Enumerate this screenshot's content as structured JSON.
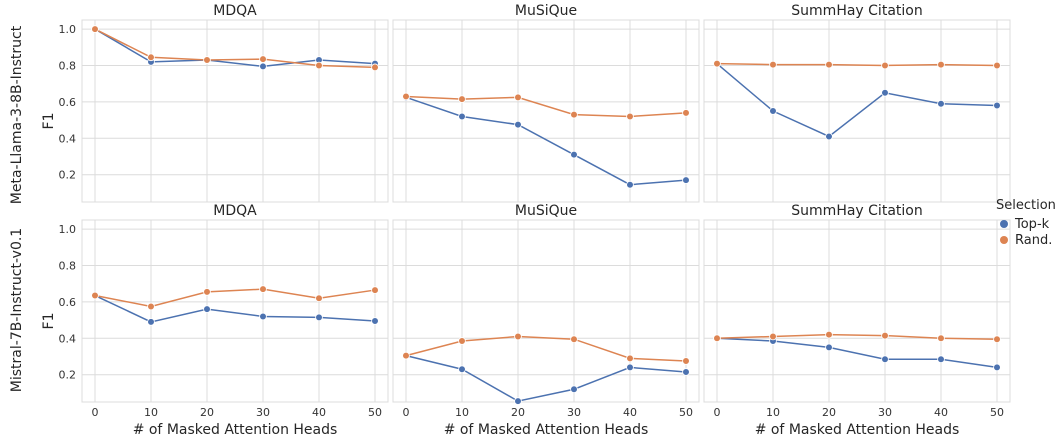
{
  "colors": {
    "topk": "#4c72b0",
    "rand": "#dd8452"
  },
  "legend": {
    "title": "Selection",
    "entries": [
      {
        "label": "Top-k",
        "color": "#4c72b0"
      },
      {
        "label": "Rand.",
        "color": "#dd8452"
      }
    ]
  },
  "row_labels": [
    "Meta-Llama-3-8B-Instruct",
    "Mistral-7B-Instruct-v0.1"
  ],
  "chart_data": [
    {
      "type": "line",
      "row": 0,
      "col": 0,
      "title": "MDQA",
      "ylabel": "F1",
      "xlabel": "",
      "x": [
        0,
        10,
        20,
        30,
        40,
        50
      ],
      "ylim": [
        0.05,
        1.05
      ],
      "yticks": [
        0.2,
        0.4,
        0.6,
        0.8,
        1.0
      ],
      "grid": true,
      "series": [
        {
          "name": "Top-k",
          "values": [
            1.0,
            0.82,
            0.83,
            0.795,
            0.83,
            0.81
          ]
        },
        {
          "name": "Rand.",
          "values": [
            1.0,
            0.845,
            0.83,
            0.835,
            0.8,
            0.79
          ]
        }
      ]
    },
    {
      "type": "line",
      "row": 0,
      "col": 1,
      "title": "MuSiQue",
      "ylabel": "",
      "xlabel": "",
      "x": [
        0,
        10,
        20,
        30,
        40,
        50
      ],
      "ylim": [
        0.05,
        1.05
      ],
      "grid": true,
      "series": [
        {
          "name": "Top-k",
          "values": [
            0.625,
            0.52,
            0.475,
            0.31,
            0.145,
            0.17
          ]
        },
        {
          "name": "Rand.",
          "values": [
            0.63,
            0.615,
            0.625,
            0.53,
            0.52,
            0.54
          ]
        }
      ]
    },
    {
      "type": "line",
      "row": 0,
      "col": 2,
      "title": "SummHay Citation",
      "ylabel": "",
      "xlabel": "",
      "x": [
        0,
        10,
        20,
        30,
        40,
        50
      ],
      "ylim": [
        0.05,
        1.05
      ],
      "grid": true,
      "series": [
        {
          "name": "Top-k",
          "values": [
            0.81,
            0.55,
            0.41,
            0.65,
            0.59,
            0.58
          ]
        },
        {
          "name": "Rand.",
          "values": [
            0.81,
            0.805,
            0.805,
            0.8,
            0.805,
            0.8
          ]
        }
      ]
    },
    {
      "type": "line",
      "row": 1,
      "col": 0,
      "title": "MDQA",
      "ylabel": "F1",
      "xlabel": "# of Masked Attention Heads",
      "x": [
        0,
        10,
        20,
        30,
        40,
        50
      ],
      "ylim": [
        0.05,
        1.05
      ],
      "yticks": [
        0.2,
        0.4,
        0.6,
        0.8,
        1.0
      ],
      "grid": true,
      "series": [
        {
          "name": "Top-k",
          "values": [
            0.635,
            0.49,
            0.56,
            0.52,
            0.515,
            0.495
          ]
        },
        {
          "name": "Rand.",
          "values": [
            0.635,
            0.575,
            0.655,
            0.67,
            0.62,
            0.665
          ]
        }
      ]
    },
    {
      "type": "line",
      "row": 1,
      "col": 1,
      "title": "MuSiQue",
      "ylabel": "",
      "xlabel": "# of Masked Attention Heads",
      "x": [
        0,
        10,
        20,
        30,
        40,
        50
      ],
      "ylim": [
        0.05,
        1.05
      ],
      "grid": true,
      "series": [
        {
          "name": "Top-k",
          "values": [
            0.305,
            0.23,
            0.055,
            0.12,
            0.24,
            0.215
          ]
        },
        {
          "name": "Rand.",
          "values": [
            0.305,
            0.385,
            0.41,
            0.395,
            0.29,
            0.275
          ]
        }
      ]
    },
    {
      "type": "line",
      "row": 1,
      "col": 2,
      "title": "SummHay Citation",
      "ylabel": "",
      "xlabel": "# of Masked Attention Heads",
      "x": [
        0,
        10,
        20,
        30,
        40,
        50
      ],
      "ylim": [
        0.05,
        1.05
      ],
      "grid": true,
      "series": [
        {
          "name": "Top-k",
          "values": [
            0.4,
            0.385,
            0.35,
            0.285,
            0.285,
            0.24
          ]
        },
        {
          "name": "Rand.",
          "values": [
            0.4,
            0.41,
            0.42,
            0.415,
            0.4,
            0.395
          ]
        }
      ]
    }
  ]
}
